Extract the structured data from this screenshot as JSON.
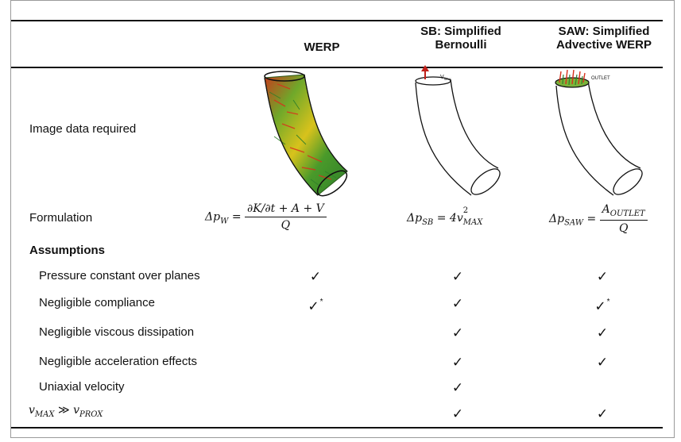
{
  "header": {
    "col1": "WERP",
    "col2_line1": "SB: Simplified",
    "col2_line2": "Bernoulli",
    "col3_line1": "SAW: Simplified",
    "col3_line2": "Advective WERP"
  },
  "rows": {
    "image_data": "Image data required",
    "formulation": "Formulation",
    "assumptions": "Assumptions",
    "pressure": "Pressure constant over planes",
    "compliance": "Negligible compliance",
    "viscous": "Negligible viscous dissipation",
    "acceleration": "Negligible acceleration effects",
    "uniaxial": "Uniaxial velocity"
  },
  "figure_labels": {
    "vmax": "V",
    "vmax_sub": "MAX",
    "outlet": "OUTLET"
  },
  "check": "✓",
  "star": "*",
  "formulas": {
    "werp_lhs": "Δp",
    "werp_lhs_sub": "W",
    "werp_num": "∂K/∂t + A + V",
    "werp_den": "Q",
    "sb_lhs": "Δp",
    "sb_lhs_sub": "SB",
    "sb_rhs": "4v",
    "sb_rhs_sup": "2",
    "sb_rhs_sub": "MAX",
    "saw_lhs": "Δp",
    "saw_lhs_sub": "SAW",
    "saw_num": "A",
    "saw_num_sub": "OUTLET",
    "saw_den": "Q",
    "last_row_v1": "v",
    "last_row_v1_sub": "MAX",
    "last_row_op": "≫",
    "last_row_v2": "v",
    "last_row_v2_sub": "PROX"
  },
  "colors": {
    "flow_green": "#4a9a2a",
    "flow_red": "#d9301c",
    "flow_yellow": "#d8c21c",
    "outline": "#111111",
    "arrow_red": "#c0201a"
  }
}
